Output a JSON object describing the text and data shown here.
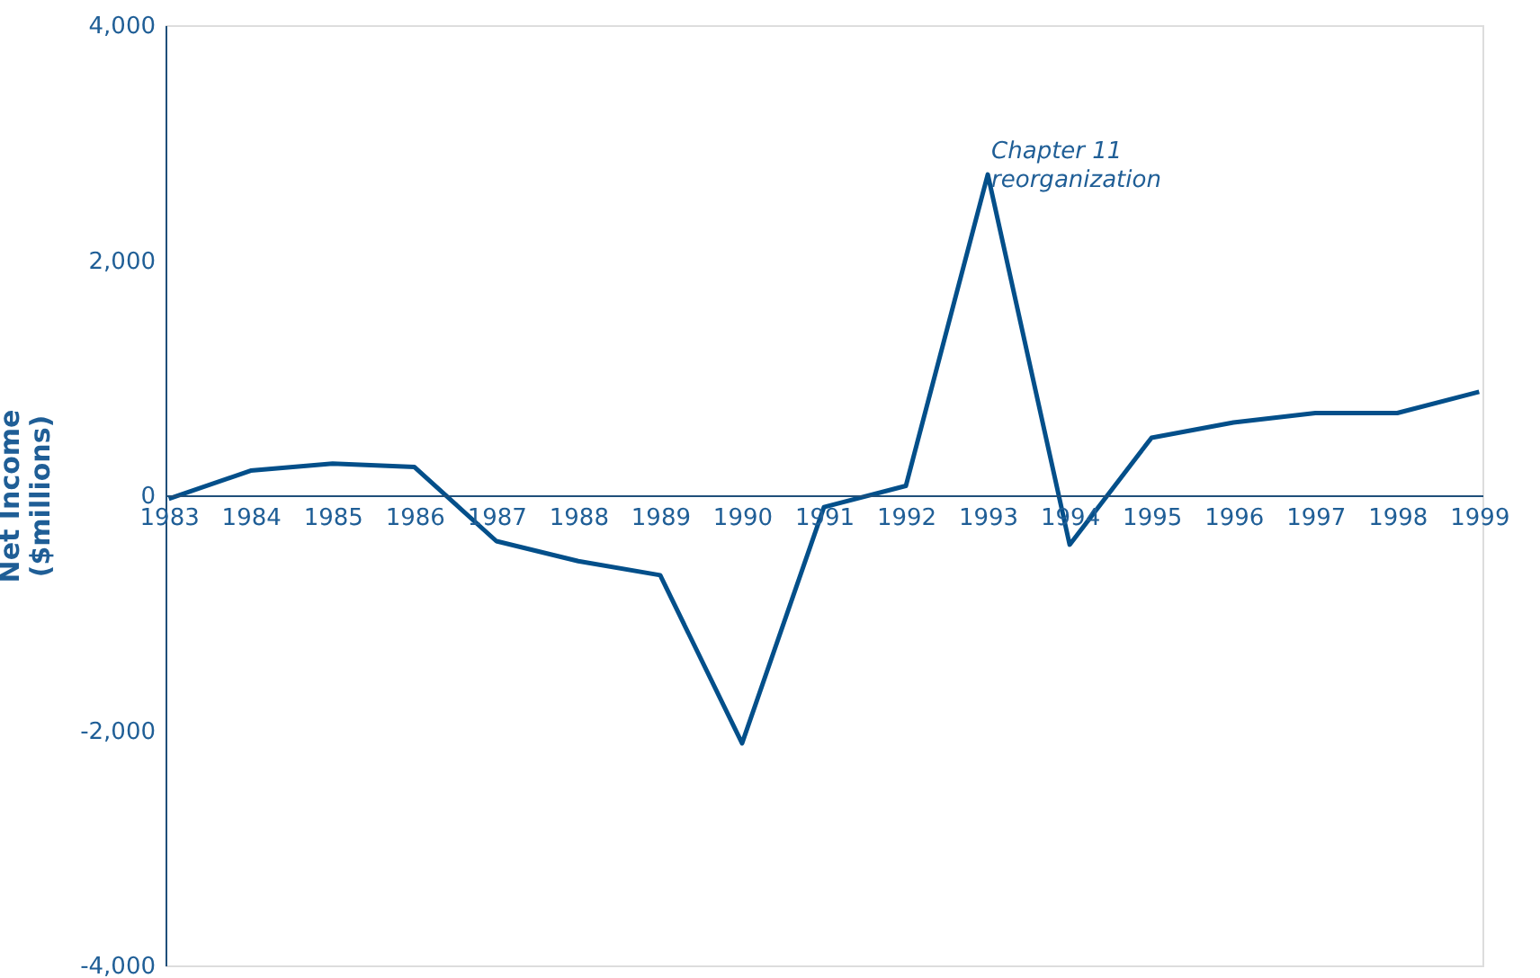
{
  "chart_data": {
    "type": "line",
    "ylabel": "Net Income\n($millions)",
    "categories": [
      "1983",
      "1984",
      "1985",
      "1986",
      "1987",
      "1988",
      "1989",
      "1990",
      "1991",
      "1992",
      "1993",
      "1994",
      "1995",
      "1996",
      "1997",
      "1998",
      "1999"
    ],
    "series": [
      {
        "color": "#034f8a",
        "values": [
          -30,
          210,
          270,
          240,
          -390,
          -560,
          -680,
          -2110,
          -100,
          80,
          2730,
          -420,
          490,
          620,
          700,
          700,
          880
        ]
      }
    ],
    "ylim": [
      -4000,
      4000
    ],
    "yticks": [
      {
        "value": -4000,
        "label": "-4,000"
      },
      {
        "value": -2000,
        "label": "-2,000"
      },
      0,
      {
        "value": 2000,
        "label": "2,000"
      },
      {
        "value": 4000,
        "label": "4,000"
      }
    ],
    "annotations": [
      {
        "text": "Chapter 11\nreorganization",
        "x": "1993",
        "y": 2730
      }
    ],
    "grid": false,
    "marker": "none",
    "line_style": "solid"
  }
}
